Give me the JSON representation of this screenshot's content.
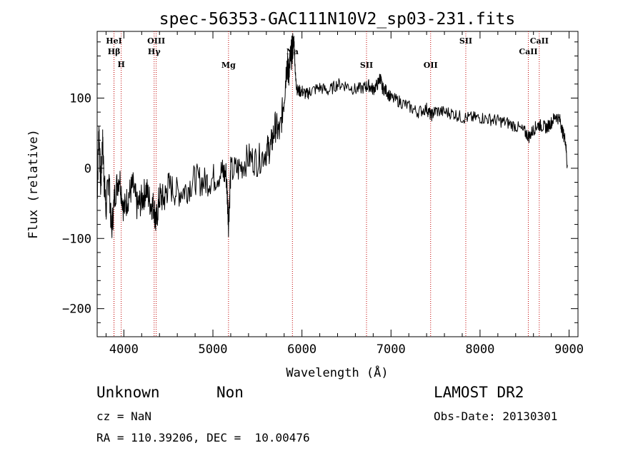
{
  "chart_data": {
    "type": "line",
    "title": "spec-56353-GAC111N10V2_sp03-231.fits",
    "xlabel": "Wavelength (Å)",
    "ylabel": "Flux (relative)",
    "xlim": [
      3700,
      9100
    ],
    "ylim": [
      -240,
      195
    ],
    "x_ticks": [
      {
        "v": 4000,
        "label": "4000"
      },
      {
        "v": 5000,
        "label": "5000"
      },
      {
        "v": 6000,
        "label": "6000"
      },
      {
        "v": 7000,
        "label": "7000"
      },
      {
        "v": 8000,
        "label": "8000"
      },
      {
        "v": 9000,
        "label": "9000"
      }
    ],
    "y_ticks": [
      {
        "v": 100,
        "label": "100"
      },
      {
        "v": 0,
        "label": "0"
      },
      {
        "v": -100,
        "label": "−100"
      },
      {
        "v": -200,
        "label": "−200"
      }
    ],
    "x_minor_step": 200,
    "y_minor_step": 20,
    "grid": false,
    "line_color": "#000000",
    "marker_color": "#c00000",
    "spectral_lines": [
      {
        "label": "Hβ",
        "x": 3889,
        "row": 1
      },
      {
        "label": "HeI",
        "x": 3889,
        "row": 0
      },
      {
        "label": "H",
        "x": 3970,
        "row": 2
      },
      {
        "label": "OIII",
        "x": 4363,
        "row": 0
      },
      {
        "label": "Hγ",
        "x": 4340,
        "row": 1
      },
      {
        "label": "Mg",
        "x": 5175,
        "row": 3
      },
      {
        "label": "Na",
        "x": 5893,
        "row": 1
      },
      {
        "label": "SII",
        "x": 6725,
        "row": 3
      },
      {
        "label": "OII",
        "x": 7445,
        "row": 3
      },
      {
        "label": "SII",
        "x": 7840,
        "row": 0
      },
      {
        "label": "CaII",
        "x": 8542,
        "row": 1
      },
      {
        "label": "CaII",
        "x": 8665,
        "row": 0
      }
    ],
    "series": [
      {
        "x": [
          3700,
          3720,
          3740,
          3760,
          3780,
          3800,
          3830,
          3860,
          3900,
          3950,
          4000,
          4050,
          4100,
          4150,
          4200,
          4250,
          4300,
          4340,
          4360,
          4400,
          4450,
          4500,
          4600,
          4700,
          4800,
          4900,
          5000,
          5100,
          5150,
          5175,
          5200,
          5300,
          5400,
          5500,
          5600,
          5650,
          5700,
          5750,
          5800,
          5830,
          5850,
          5870,
          5893,
          5910,
          5930,
          5950,
          6000,
          6050,
          6100,
          6200,
          6300,
          6400,
          6500,
          6600,
          6700,
          6750,
          6800,
          6850,
          6880,
          6900,
          6950,
          7000,
          7100,
          7200,
          7300,
          7400,
          7450,
          7500,
          7600,
          7700,
          7800,
          7900,
          8000,
          8100,
          8200,
          8300,
          8400,
          8500,
          8550,
          8600,
          8650,
          8700,
          8750,
          8800,
          8850,
          8900,
          8930,
          8960,
          8980
        ],
        "y": [
          -40,
          60,
          -30,
          40,
          -20,
          -60,
          -5,
          -90,
          -35,
          -10,
          -60,
          -40,
          -25,
          -55,
          -45,
          -30,
          -50,
          -55,
          -80,
          -40,
          -45,
          -25,
          -35,
          -30,
          -15,
          -20,
          -15,
          -5,
          -10,
          -75,
          -5,
          0,
          15,
          10,
          25,
          30,
          60,
          50,
          100,
          150,
          135,
          155,
          170,
          185,
          125,
          110,
          110,
          105,
          110,
          115,
          110,
          120,
          118,
          112,
          115,
          118,
          112,
          120,
          130,
          115,
          110,
          100,
          95,
          88,
          80,
          85,
          75,
          82,
          80,
          78,
          72,
          72,
          72,
          70,
          68,
          65,
          60,
          52,
          45,
          55,
          62,
          60,
          58,
          65,
          75,
          68,
          50,
          40,
          2
        ]
      }
    ]
  },
  "footer": {
    "object_class": "Unknown",
    "object_subclass": "Non",
    "survey": "LAMOST DR2",
    "redshift": "cz = NaN",
    "obs_date": "Obs-Date: 20130301",
    "coords": "RA = 110.39206, DEC =  10.00476"
  }
}
